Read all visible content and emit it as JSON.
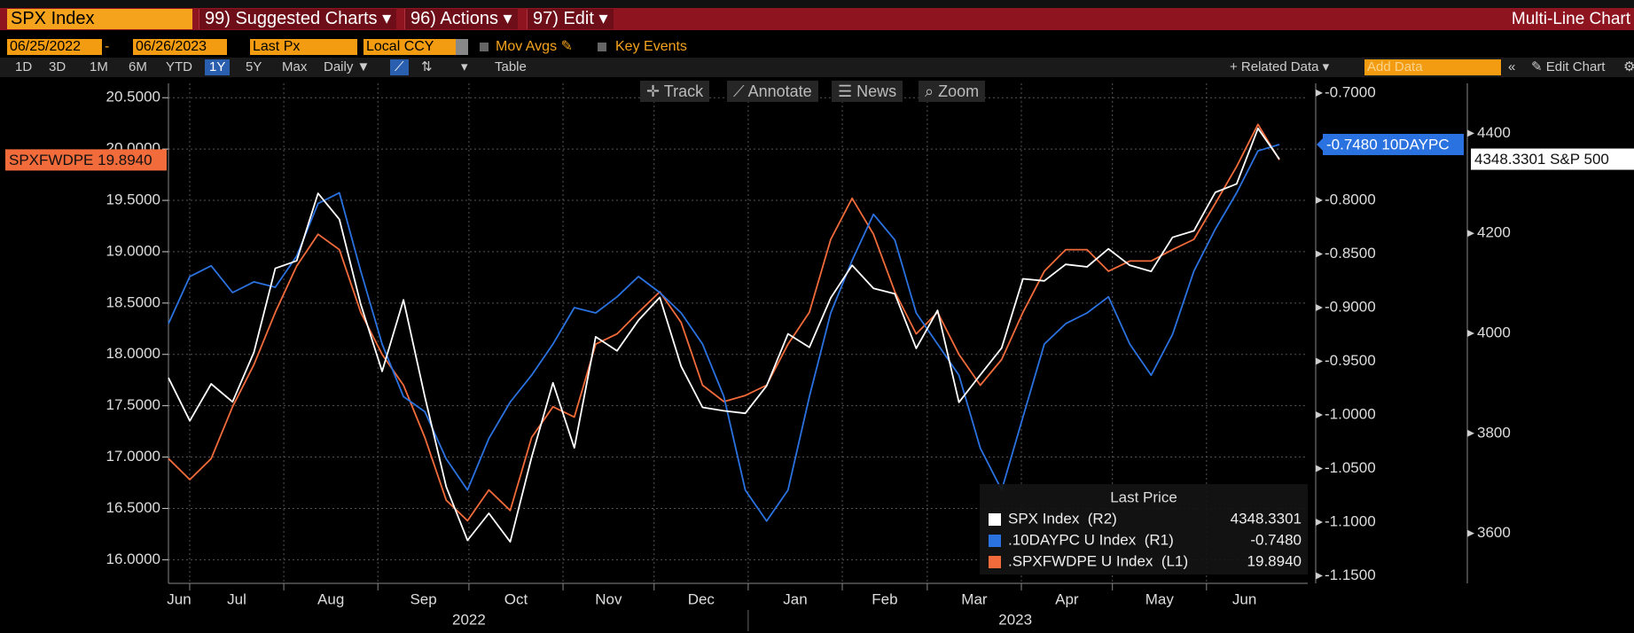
{
  "toolbar": {
    "ticker": "SPX Index",
    "suggested": "99) Suggested Charts",
    "actions": "96) Actions",
    "edit": "97) Edit",
    "mode": "Multi-Line Chart"
  },
  "controls": {
    "start": "06/25/2022",
    "end": "06/26/2023",
    "field": "Last Px",
    "currency": "Local CCY",
    "mov_avgs": "Mov Avgs",
    "key_events": "Key Events",
    "periods": [
      "1D",
      "3D",
      "1M",
      "6M",
      "YTD",
      "1Y",
      "5Y",
      "Max"
    ],
    "frequency": "Daily",
    "table": "Table",
    "related": "+ Related Data",
    "add_data": "Add Data",
    "edit_chart": "Edit Chart"
  },
  "chart_tools": [
    "Track",
    "Annotate",
    "News",
    "Zoom"
  ],
  "chart_data": {
    "type": "line",
    "x_labels": [
      "Jun",
      "Jul",
      "Aug",
      "Sep",
      "Oct",
      "Nov",
      "Dec",
      "Jan",
      "Feb",
      "Mar",
      "Apr",
      "May",
      "Jun"
    ],
    "year_labels": [
      "2022",
      "2023"
    ],
    "ylim": [
      15.77,
      20.64
    ],
    "yticks": [
      {
        "value": 16,
        "label": "16.0000"
      },
      {
        "value": 16.5,
        "label": "16.5000"
      },
      {
        "value": 17,
        "label": "17.0000"
      },
      {
        "value": 17.5,
        "label": "17.5000"
      },
      {
        "value": 18,
        "label": "18.0000"
      },
      {
        "value": 18.5,
        "label": "18.5000"
      },
      {
        "value": 19,
        "label": "19.0000"
      },
      {
        "value": 19.5,
        "label": "19.5000"
      },
      {
        "value": 20,
        "label": "20.0000"
      },
      {
        "value": 20.5,
        "label": "20.5000"
      }
    ],
    "y2lim": [
      -1.157,
      -0.691
    ],
    "y2ticks": [
      {
        "value": -1.15,
        "label": "-1.1500"
      },
      {
        "value": -1.1,
        "label": "-1.1000"
      },
      {
        "value": -1.05,
        "label": "-1.0500"
      },
      {
        "value": -1,
        "label": "-1.0000"
      },
      {
        "value": -0.95,
        "label": "-0.9500"
      },
      {
        "value": -0.9,
        "label": "-0.9000"
      },
      {
        "value": -0.85,
        "label": "-0.8500"
      },
      {
        "value": -0.8,
        "label": "-0.8000"
      },
      {
        "value": -0.7,
        "label": "-0.7000"
      }
    ],
    "y3lim": [
      3500,
      4500
    ],
    "y3ticks": [
      3600,
      3800,
      4000,
      4200,
      4400
    ],
    "grid": true,
    "legend_title": "Last Price",
    "series": [
      {
        "name": "SPX Index  (R2)",
        "axis": "y3",
        "color": "#ffffff",
        "last_label": "4348.3301",
        "tag": "4348.3301 S&P 500",
        "values": [
          3911,
          3825,
          3899,
          3863,
          3962,
          4130,
          4145,
          4280,
          4228,
          4058,
          3924,
          4067,
          3873,
          3693,
          3586,
          3640,
          3583,
          3752,
          3901,
          3771,
          3993,
          3965,
          4026,
          4072,
          3934,
          3852,
          3845,
          3840,
          3895,
          3999,
          3972,
          4071,
          4136,
          4090,
          4079,
          3970,
          4046,
          3862,
          3917,
          3971,
          4109,
          4105,
          4138,
          4133,
          4169,
          4136,
          4124,
          4192,
          4205,
          4282,
          4299,
          4410,
          4348.3301
        ]
      },
      {
        "name": ".10DAYPC U Index  (R1)",
        "axis": "y2",
        "color": "#2a72e0",
        "last_label": "-0.7480",
        "tag": "-0.7480 10DAYPC",
        "values": [
          -0.915,
          -0.871,
          -0.861,
          -0.886,
          -0.876,
          -0.881,
          -0.852,
          -0.803,
          -0.793,
          -0.866,
          -0.934,
          -0.983,
          -0.997,
          -1.041,
          -1.07,
          -1.022,
          -0.988,
          -0.963,
          -0.934,
          -0.9,
          -0.905,
          -0.89,
          -0.871,
          -0.886,
          -0.905,
          -0.934,
          -0.983,
          -1.07,
          -1.099,
          -1.07,
          -0.983,
          -0.905,
          -0.856,
          -0.813,
          -0.837,
          -0.905,
          -0.934,
          -0.963,
          -1.031,
          -1.07,
          -1.002,
          -0.934,
          -0.915,
          -0.905,
          -0.89,
          -0.934,
          -0.963,
          -0.925,
          -0.866,
          -0.827,
          -0.793,
          -0.754,
          -0.748
        ]
      },
      {
        "name": ".SPXFWDPE U Index  (L1)",
        "axis": "y",
        "color": "#f26b3a",
        "last_label": "19.8940",
        "tag": "SPXFWDPE 19.8940",
        "values": [
          16.985,
          16.78,
          16.985,
          17.49,
          17.9,
          18.41,
          18.86,
          19.17,
          19.02,
          18.41,
          18.0,
          17.7,
          17.19,
          16.58,
          16.38,
          16.68,
          16.48,
          17.19,
          17.49,
          17.39,
          18.1,
          18.2,
          18.41,
          18.61,
          18.31,
          17.7,
          17.54,
          17.6,
          17.7,
          18.1,
          18.41,
          19.12,
          19.52,
          19.17,
          18.61,
          18.2,
          18.41,
          18.0,
          17.7,
          17.95,
          18.41,
          18.81,
          19.02,
          19.02,
          18.81,
          18.91,
          18.91,
          19.02,
          19.12,
          19.47,
          19.83,
          20.24,
          19.894
        ]
      }
    ]
  }
}
